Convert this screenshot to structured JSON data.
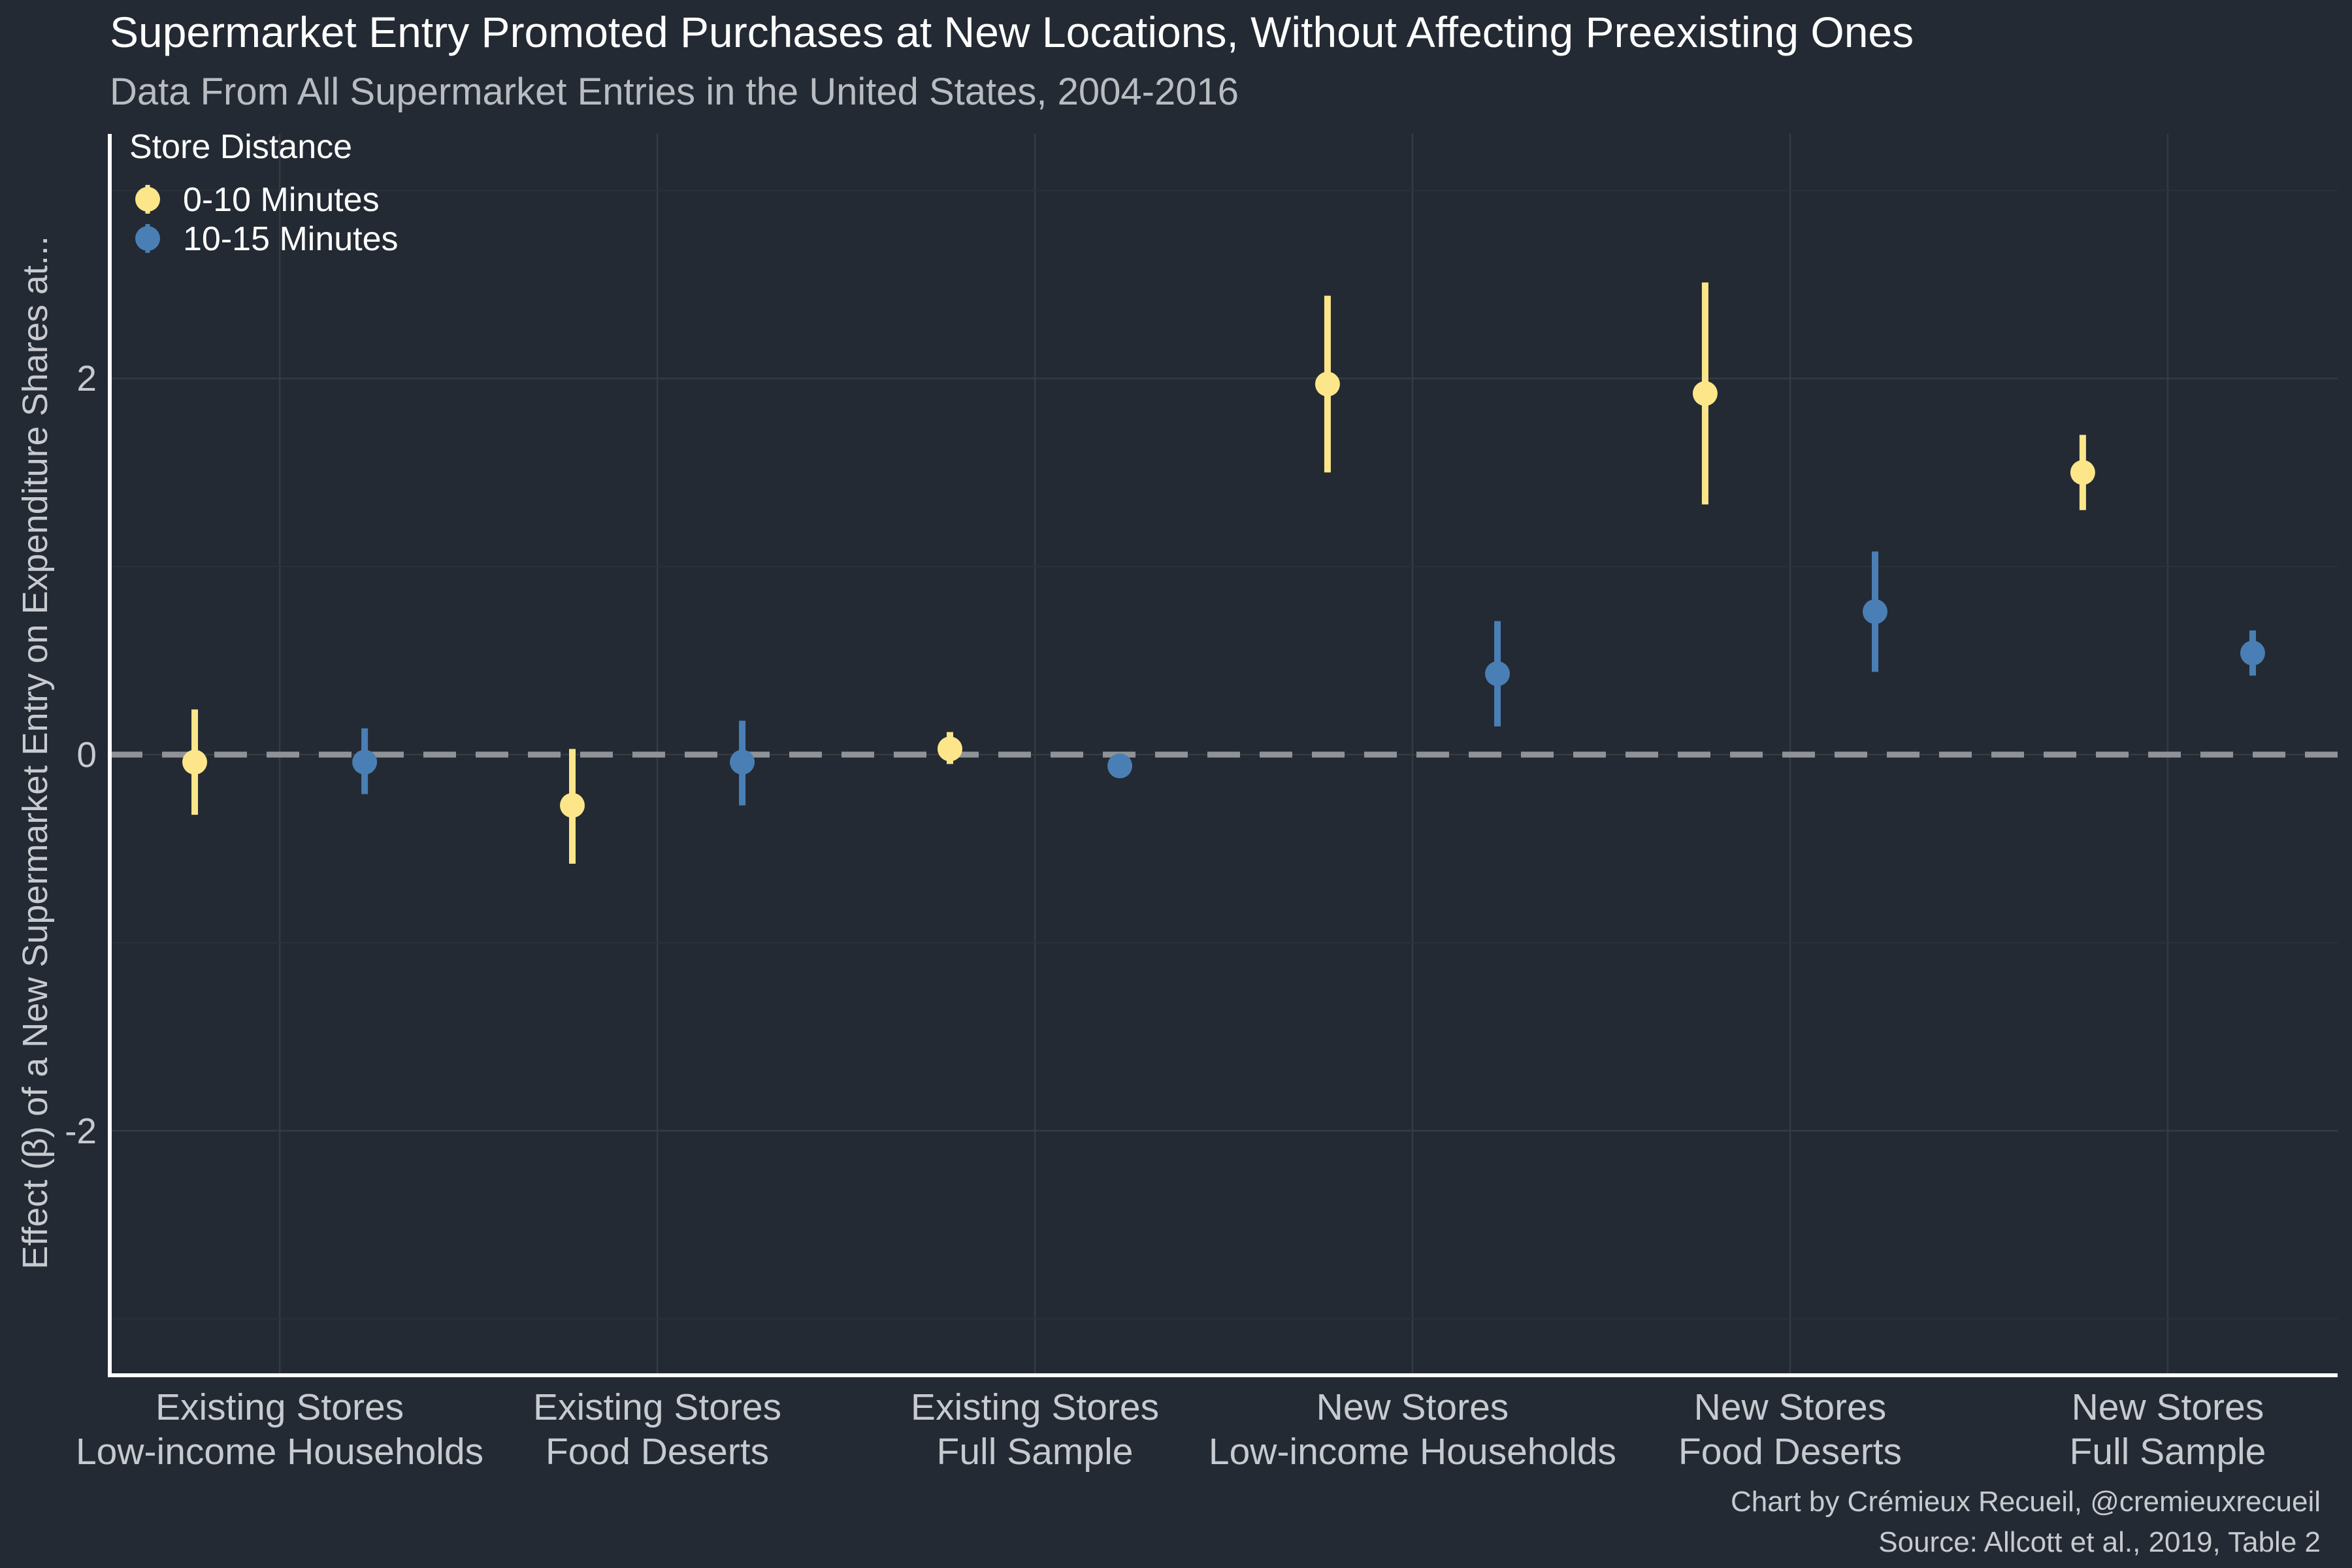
{
  "chart_data": {
    "type": "pointrange",
    "title": "Supermarket Entry Promoted Purchases at New Locations, Without Affecting Preexisting Ones",
    "subtitle": "Data From All Supermarket Entries in the United States, 2004-2016",
    "xlabel": "",
    "ylabel": "Effect (β) of a New Supermarket Entry on Expenditure Shares at...",
    "ylim": [
      -3.3,
      3.3
    ],
    "yticks": [
      -2,
      0,
      2
    ],
    "ytick_labels": [
      "-2",
      "0",
      "2"
    ],
    "reference_line": {
      "y": 0,
      "style": "dashed"
    },
    "legend": {
      "title": "Store Distance",
      "position": "top-left"
    },
    "categories": [
      [
        "Existing Stores",
        "Low-income Households"
      ],
      [
        "Existing Stores",
        "Food Deserts"
      ],
      [
        "Existing Stores",
        "Full Sample"
      ],
      [
        "New Stores",
        "Low-income Households"
      ],
      [
        "New Stores",
        "Food Deserts"
      ],
      [
        "New Stores",
        "Full Sample"
      ]
    ],
    "series": [
      {
        "name": "0-10 Minutes",
        "color": "#fde68a",
        "values": [
          -0.04,
          -0.27,
          0.03,
          1.97,
          1.92,
          1.5
        ],
        "lower": [
          -0.32,
          -0.58,
          -0.05,
          1.5,
          1.33,
          1.3
        ],
        "upper": [
          0.24,
          0.03,
          0.12,
          2.44,
          2.51,
          1.7
        ]
      },
      {
        "name": "10-15 Minutes",
        "color": "#4a7fb5",
        "values": [
          -0.04,
          -0.04,
          -0.06,
          0.43,
          0.76,
          0.54
        ],
        "lower": [
          -0.21,
          -0.27,
          -0.1,
          0.15,
          0.44,
          0.42
        ],
        "upper": [
          0.14,
          0.18,
          -0.02,
          0.71,
          1.08,
          0.66
        ]
      }
    ]
  },
  "caption": {
    "line1": "Chart by Crémieux Recueil, @cremieuxrecueil",
    "line2": "Source: Allcott et al., 2019, Table 2"
  }
}
